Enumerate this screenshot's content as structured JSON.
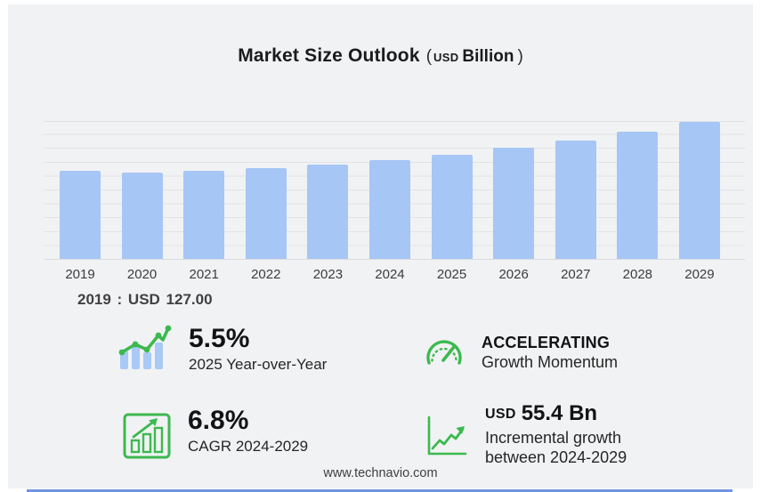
{
  "title": {
    "main": "Market Size Outlook",
    "paren_open": "(",
    "currency": "USD",
    "unit": "Billion",
    "paren_close": ")"
  },
  "chart_data": {
    "type": "bar",
    "title": "Market Size Outlook (USD Billion)",
    "categories": [
      "2019",
      "2020",
      "2021",
      "2022",
      "2023",
      "2024",
      "2025",
      "2026",
      "2027",
      "2028",
      "2029"
    ],
    "values": [
      127.0,
      124.0,
      127.4,
      131.3,
      136.4,
      142.3,
      150.1,
      159.7,
      170.5,
      183.3,
      197.7
    ],
    "xlabel": "",
    "ylabel": "USD Billion",
    "ylim": [
      0,
      200
    ],
    "gridline_step": 20,
    "grid": true,
    "legend": false,
    "bar_color": "#a6c6f5",
    "annotation": "2019 : USD 127.00"
  },
  "base_annotation": "2019 : USD  127.00",
  "stats": {
    "yoy": {
      "value": "5.5%",
      "label": "2025 Year-over-Year",
      "icon": "trend-bars-icon"
    },
    "momentum": {
      "value": "ACCELERATING",
      "label": "Growth Momentum",
      "icon": "gauge-icon"
    },
    "cagr": {
      "value": "6.8%",
      "label": "CAGR 2024-2029",
      "icon": "bar-growth-icon"
    },
    "incremental": {
      "value_prefix": "USD",
      "value": "55.4 Bn",
      "label_line1": "Incremental growth",
      "label_line2": "between 2024-2029",
      "icon": "line-growth-icon"
    }
  },
  "footer": {
    "website": "www.technavio.com"
  },
  "colors": {
    "bar_blue": "#a6c6f5",
    "icon_green": "#3cb94f",
    "panel_bg": "#f1f2f4",
    "gridline": "#e2e2e6",
    "bottom_line_blue": "#6f96e0",
    "title_text": "#1b1b1b"
  }
}
